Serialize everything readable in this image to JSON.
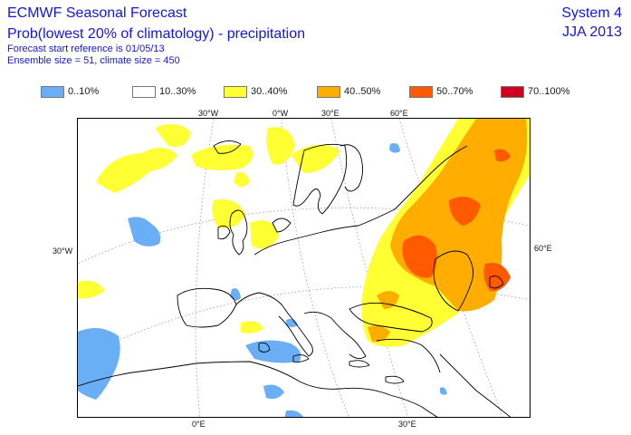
{
  "header": {
    "title": "ECMWF Seasonal Forecast",
    "subtitle": "Prob(lowest 20% of climatology) - precipitation",
    "forecast_start": "Forecast start reference is 01/05/13",
    "ensemble": "Ensemble size = 51, climate size = 450",
    "system": "System 4",
    "season": "JJA 2013"
  },
  "legend": [
    {
      "label": "0..10%",
      "color": "#6aaef5"
    },
    {
      "label": "10..30%",
      "color": "#ffffff"
    },
    {
      "label": "30..40%",
      "color": "#ffff33"
    },
    {
      "label": "40..50%",
      "color": "#ffad00"
    },
    {
      "label": "50..70%",
      "color": "#ff5a00"
    },
    {
      "label": "70..100%",
      "color": "#d20020"
    }
  ],
  "map": {
    "ticks": {
      "top": [
        "30°W",
        "0°W",
        "30°E",
        "60°E"
      ],
      "left": [
        "30°W"
      ],
      "right": [
        "60°E"
      ],
      "bottom": [
        "0°E",
        "30°E"
      ]
    }
  }
}
